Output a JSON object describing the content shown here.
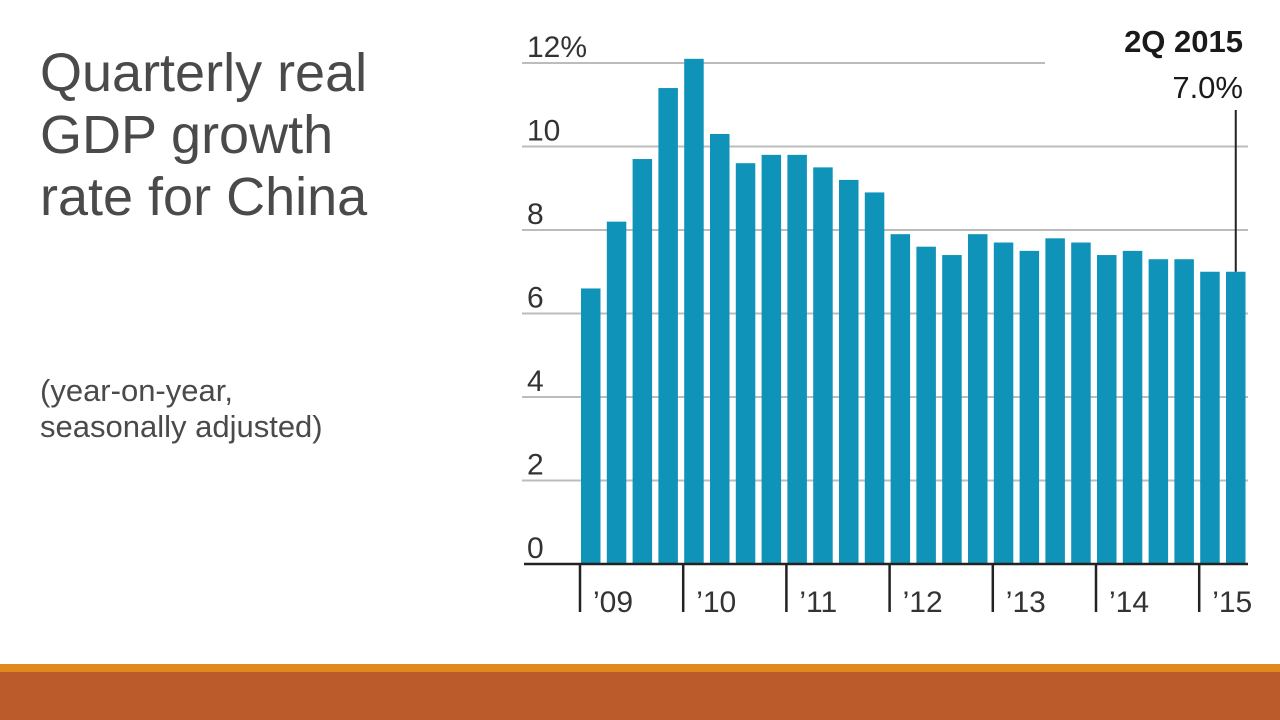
{
  "slide": {
    "title": "Quarterly real\nGDP growth\nrate for China",
    "subtitle": "(year-on-year,\nseasonally adjusted)"
  },
  "colors": {
    "bar": "#0f93b9",
    "grid": "#bcbcbc",
    "axis": "#222222",
    "band_top": "#e08a1e",
    "band_bottom": "#bb5a2a",
    "title_text": "#4a4a4a"
  },
  "chart_data": {
    "type": "bar",
    "x": [
      "1Q 2009",
      "2Q 2009",
      "3Q 2009",
      "4Q 2009",
      "1Q 2010",
      "2Q 2010",
      "3Q 2010",
      "4Q 2010",
      "1Q 2011",
      "2Q 2011",
      "3Q 2011",
      "4Q 2011",
      "1Q 2012",
      "2Q 2012",
      "3Q 2012",
      "4Q 2012",
      "1Q 2013",
      "2Q 2013",
      "3Q 2013",
      "4Q 2013",
      "1Q 2014",
      "2Q 2014",
      "3Q 2014",
      "4Q 2014",
      "1Q 2015",
      "2Q 2015"
    ],
    "values": [
      6.6,
      8.2,
      9.7,
      11.4,
      12.1,
      10.3,
      9.6,
      9.8,
      9.8,
      9.5,
      9.2,
      8.9,
      7.9,
      7.6,
      7.4,
      7.9,
      7.7,
      7.5,
      7.8,
      7.7,
      7.4,
      7.5,
      7.3,
      7.3,
      7.0,
      7.0
    ],
    "ylim": [
      0,
      12
    ],
    "y_ticks": [
      {
        "value": 0,
        "label": "0"
      },
      {
        "value": 2,
        "label": "2"
      },
      {
        "value": 4,
        "label": "4"
      },
      {
        "value": 6,
        "label": "6"
      },
      {
        "value": 8,
        "label": "8"
      },
      {
        "value": 10,
        "label": "10"
      },
      {
        "value": 12,
        "label": "12%"
      }
    ],
    "year_labels": [
      {
        "label": "’09",
        "start_index": 0
      },
      {
        "label": "’10",
        "start_index": 4
      },
      {
        "label": "’11",
        "start_index": 8
      },
      {
        "label": "’12",
        "start_index": 12
      },
      {
        "label": "’13",
        "start_index": 16
      },
      {
        "label": "’14",
        "start_index": 20
      },
      {
        "label": "’15",
        "start_index": 24
      }
    ],
    "grid": true,
    "annotation": {
      "index": 25,
      "label": "2Q 2015",
      "value_label": "7.0%"
    }
  }
}
